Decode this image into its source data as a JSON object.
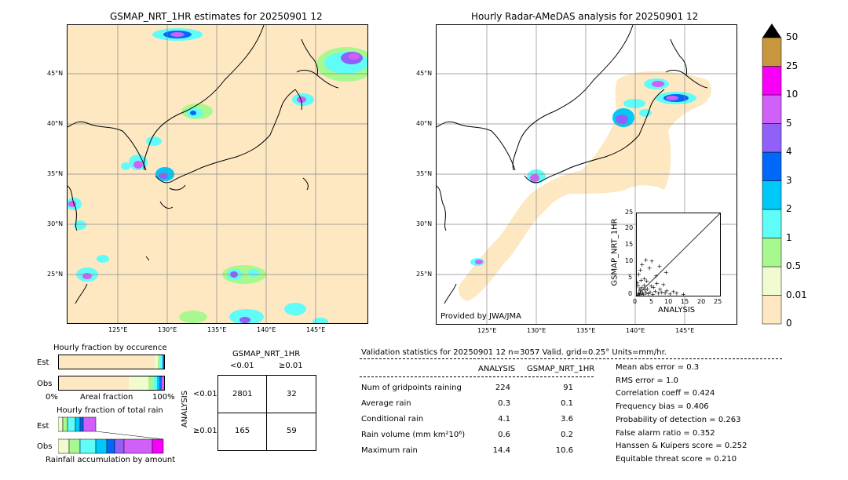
{
  "left_map": {
    "title": "GSMAP_NRT_1HR estimates for 20250901 12",
    "lat_ticks": [
      "45°N",
      "40°N",
      "35°N",
      "30°N",
      "25°N"
    ],
    "lon_ticks": [
      "125°E",
      "130°E",
      "135°E",
      "140°E",
      "145°E"
    ]
  },
  "right_map": {
    "title": "Hourly Radar-AMeDAS analysis for 20250901 12",
    "lat_ticks": [
      "45°N",
      "40°N",
      "35°N",
      "30°N",
      "25°N"
    ],
    "lon_ticks": [
      "125°E",
      "130°E",
      "135°E",
      "140°E",
      "145°E"
    ],
    "credit": "Provided by JWA/JMA"
  },
  "colorbar": {
    "levels": [
      "0",
      "0.01",
      "0.5",
      "1",
      "2",
      "3",
      "4",
      "5",
      "10",
      "25",
      "50"
    ],
    "colors": [
      "#fde8c2",
      "#f0fcd0",
      "#a8f890",
      "#60fcf8",
      "#00c8f8",
      "#0068f8",
      "#9060f8",
      "#d060f8",
      "#f800f8",
      "#c8963c"
    ]
  },
  "scatter": {
    "xlabel": "ANALYSIS",
    "ylabel": "GSMAP_NRT_1HR",
    "ticks": [
      "0",
      "5",
      "10",
      "15",
      "20",
      "25"
    ],
    "chart_data": {
      "type": "scatter",
      "xlim": [
        0,
        25
      ],
      "ylim": [
        0,
        25
      ],
      "points": [
        [
          0.3,
          0.2
        ],
        [
          0.5,
          0.8
        ],
        [
          0.8,
          0.3
        ],
        [
          1.0,
          1.5
        ],
        [
          1.2,
          0.6
        ],
        [
          1.5,
          2.5
        ],
        [
          1.8,
          1.0
        ],
        [
          2.0,
          0.4
        ],
        [
          2.2,
          3.2
        ],
        [
          2.5,
          1.8
        ],
        [
          2.8,
          0.9
        ],
        [
          3.0,
          4.5
        ],
        [
          3.2,
          2.1
        ],
        [
          3.5,
          0.7
        ],
        [
          4.0,
          1.2
        ],
        [
          4.3,
          3.0
        ],
        [
          4.8,
          0.5
        ],
        [
          5.0,
          2.6
        ],
        [
          5.5,
          1.4
        ],
        [
          6.0,
          3.8
        ],
        [
          6.5,
          0.8
        ],
        [
          7.0,
          2.0
        ],
        [
          7.5,
          1.1
        ],
        [
          8.0,
          3.5
        ],
        [
          8.5,
          0.9
        ],
        [
          9.0,
          1.6
        ],
        [
          10.0,
          0.6
        ],
        [
          11.0,
          1.3
        ],
        [
          12.0,
          0.8
        ],
        [
          14.0,
          0.5
        ],
        [
          0.6,
          6.5
        ],
        [
          1.1,
          7.8
        ],
        [
          1.6,
          9.5
        ],
        [
          2.3,
          5.2
        ],
        [
          3.8,
          8.4
        ],
        [
          4.5,
          10.6
        ],
        [
          5.8,
          6.1
        ],
        [
          2.7,
          11.0
        ],
        [
          6.8,
          9.0
        ],
        [
          8.8,
          7.2
        ],
        [
          0.2,
          4.0
        ],
        [
          0.4,
          3.1
        ],
        [
          1.3,
          4.8
        ],
        [
          0.9,
          2.2
        ]
      ]
    }
  },
  "occurrence": {
    "title": "Hourly fraction by occurence",
    "rows": [
      "Est",
      "Obs"
    ],
    "xlabel_left": "0%",
    "xlabel_mid": "Areal fraction",
    "xlabel_right": "100%"
  },
  "total_rain": {
    "title": "Hourly fraction of total rain",
    "rows": [
      "Est",
      "Obs"
    ],
    "xlabel": "Rainfall accumulation by amount"
  },
  "contingency": {
    "col_header": "GSMAP_NRT_1HR",
    "col1": "<0.01",
    "col2": "≥0.01",
    "row_header": "ANALYSIS",
    "row1": "<0.01",
    "row2": "≥0.01",
    "cells": [
      "2801",
      "32",
      "165",
      "59"
    ]
  },
  "validation": {
    "header": "Validation statistics for 20250901 12  n=3057 Valid. grid=0.25° Units=mm/hr.",
    "col_analysis": "ANALYSIS",
    "col_gsmap": "GSMAP_NRT_1HR",
    "rows": [
      {
        "label": "Num of gridpoints raining",
        "a": "224",
        "g": "91"
      },
      {
        "label": "Average rain",
        "a": "0.3",
        "g": "0.1"
      },
      {
        "label": "Conditional rain",
        "a": "4.1",
        "g": "3.6"
      },
      {
        "label": "Rain volume (mm km²10⁶)",
        "a": "0.6",
        "g": "0.2"
      },
      {
        "label": "Maximum rain",
        "a": "14.4",
        "g": "10.6"
      }
    ],
    "scores": [
      "Mean abs error =    0.3",
      "RMS error =    1.0",
      "Correlation coeff =  0.424",
      "Frequency bias =  0.406",
      "Probability of detection =  0.263",
      "False alarm ratio =  0.352",
      "Hanssen & Kuipers score =  0.252",
      "Equitable threat score =  0.210"
    ]
  }
}
